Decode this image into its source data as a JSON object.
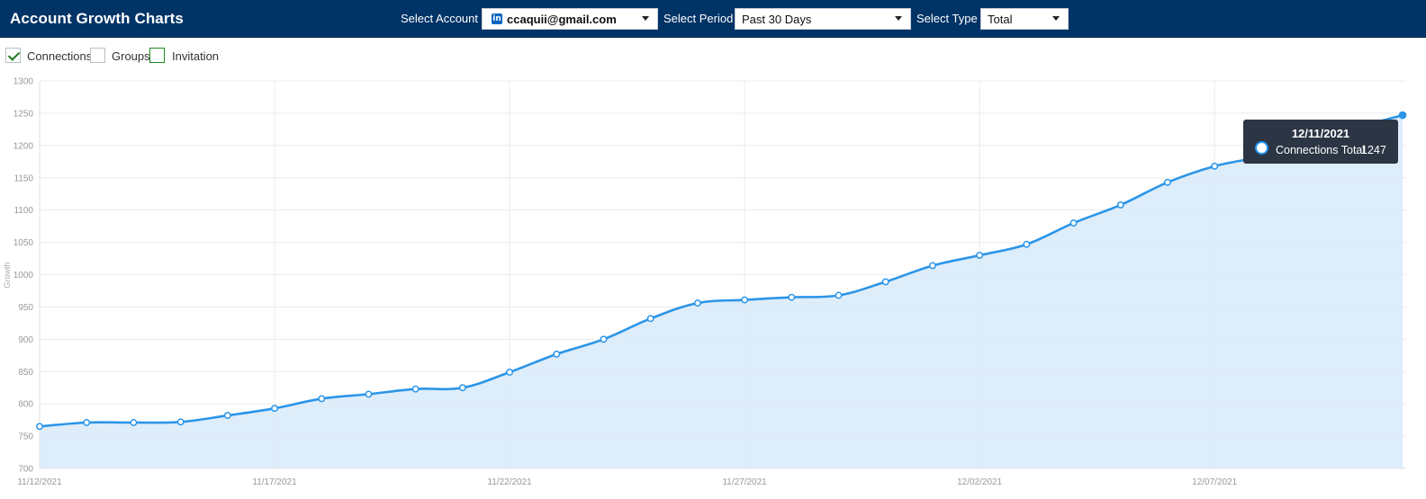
{
  "app": {
    "title": "Account Growth Charts"
  },
  "controls": {
    "account_label": "Select Account",
    "account_value": "ccaquii@gmail.com",
    "account_icon": "linkedin-icon",
    "period_label": "Select Period",
    "period_value": "Past 30 Days",
    "type_label": "Select Type",
    "type_value": "Total"
  },
  "legend": [
    {
      "label": "Connections",
      "checked": true
    },
    {
      "label": "Groups",
      "checked": false
    },
    {
      "label": "Invitation",
      "checked": false
    }
  ],
  "tooltip": {
    "date": "12/11/2021",
    "series": "Connections Total",
    "value": "1247"
  },
  "colors": {
    "header_bg": "#003366",
    "line": "#2b95e8",
    "area": "#daebfa",
    "check": "#1f7a1f"
  },
  "chart_data": {
    "type": "area",
    "ylabel": "Growth",
    "ylim": [
      700,
      1300
    ],
    "y_ticks": [
      700,
      750,
      800,
      850,
      900,
      950,
      1000,
      1050,
      1100,
      1150,
      1200,
      1250,
      1300
    ],
    "x_tick_labels": [
      "11/12/2021",
      "11/17/2021",
      "11/22/2021",
      "11/27/2021",
      "12/02/2021",
      "12/07/2021"
    ],
    "grid": true,
    "x": [
      "11/12/2021",
      "11/13/2021",
      "11/14/2021",
      "11/15/2021",
      "11/16/2021",
      "11/17/2021",
      "11/18/2021",
      "11/19/2021",
      "11/20/2021",
      "11/21/2021",
      "11/22/2021",
      "11/23/2021",
      "11/24/2021",
      "11/25/2021",
      "11/26/2021",
      "11/27/2021",
      "11/28/2021",
      "11/29/2021",
      "11/30/2021",
      "12/01/2021",
      "12/02/2021",
      "12/03/2021",
      "12/04/2021",
      "12/05/2021",
      "12/06/2021",
      "12/07/2021",
      "12/08/2021",
      "12/09/2021",
      "12/10/2021",
      "12/11/2021"
    ],
    "series": [
      {
        "name": "Connections",
        "values": [
          765,
          771,
          771,
          772,
          782,
          793,
          808,
          815,
          823,
          825,
          849,
          877,
          900,
          932,
          956,
          961,
          965,
          968,
          989,
          1014,
          1030,
          1047,
          1080,
          1108,
          1143,
          1168,
          1183,
          1203,
          1227,
          1247
        ]
      }
    ]
  }
}
